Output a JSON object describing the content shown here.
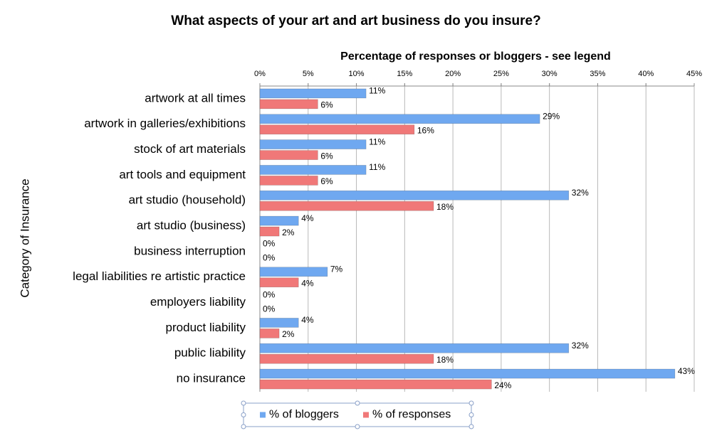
{
  "chart_data": {
    "type": "bar",
    "title": "What aspects of your art and art business do you insure?",
    "x_label": "Percentage of responses or bloggers - see legend",
    "y_label": "Category of Insurance",
    "categories": [
      "artwork at all times",
      "artwork in galleries/exhibitions",
      "stock of art materials",
      "art tools and equipment",
      "art studio (household)",
      "art studio (business)",
      "business interruption",
      "legal liabilities re artistic practice",
      "employers liability",
      "product liability",
      "public liability",
      "no insurance"
    ],
    "series": [
      {
        "name": "% of bloggers",
        "color": "#6fa8f0",
        "values": [
          11,
          29,
          11,
          11,
          32,
          4,
          0,
          7,
          0,
          4,
          32,
          43
        ],
        "value_labels": [
          "11%",
          "29%",
          "11%",
          "11%",
          "32%",
          "4%",
          "0%",
          "7%",
          "0%",
          "4%",
          "32%",
          "43%"
        ]
      },
      {
        "name": "% of responses",
        "color": "#f07878",
        "values": [
          6,
          16,
          6,
          6,
          18,
          2,
          0,
          4,
          0,
          2,
          18,
          24
        ],
        "value_labels": [
          "6%",
          "16%",
          "6%",
          "6%",
          "18%",
          "2%",
          "0%",
          "4%",
          "0%",
          "2%",
          "18%",
          "24%"
        ]
      }
    ],
    "xlim": [
      0,
      45
    ],
    "xticks": [
      {
        "value": 0,
        "label": "0%"
      },
      {
        "value": 5,
        "label": "5%"
      },
      {
        "value": 10,
        "label": "10%"
      },
      {
        "value": 15,
        "label": "15%"
      },
      {
        "value": 20,
        "label": "20%"
      },
      {
        "value": 25,
        "label": "25%"
      },
      {
        "value": 30,
        "label": "30%"
      },
      {
        "value": 35,
        "label": "35%"
      },
      {
        "value": 40,
        "label": "40%"
      },
      {
        "value": 45,
        "label": "45%"
      }
    ],
    "grid": true,
    "legend": "bottom"
  }
}
